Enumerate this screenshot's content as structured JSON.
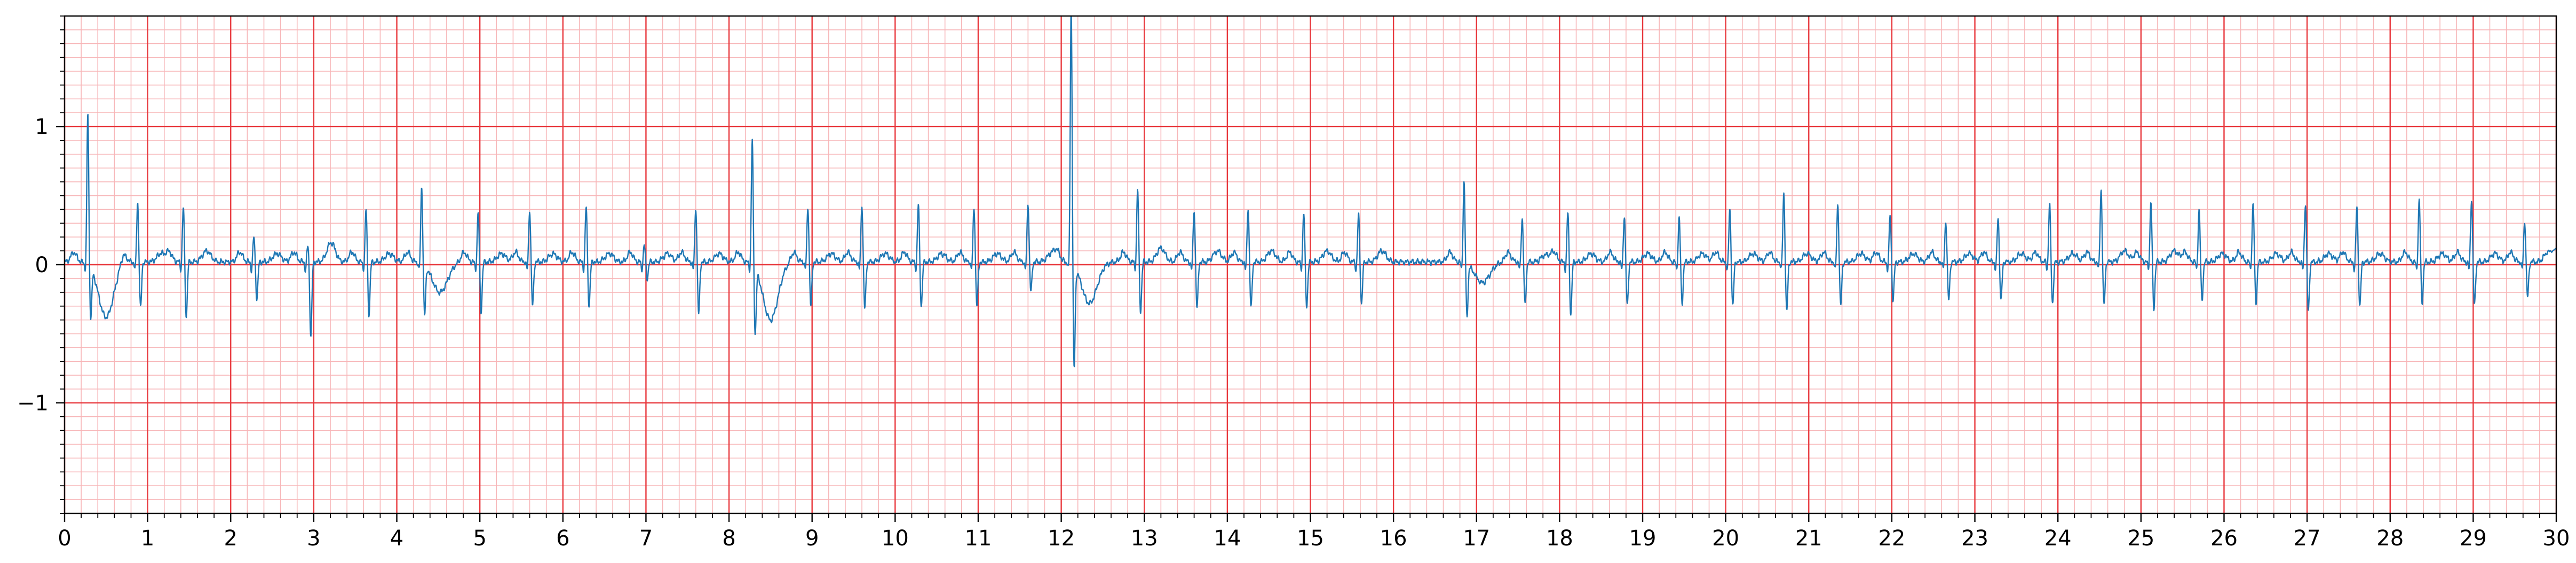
{
  "chart_data": {
    "type": "line",
    "title": "",
    "xlabel": "",
    "ylabel": "",
    "xlim": [
      0,
      30
    ],
    "ylim": [
      -1.8,
      1.8
    ],
    "x_ticks": [
      0,
      1,
      2,
      3,
      4,
      5,
      6,
      7,
      8,
      9,
      10,
      11,
      12,
      13,
      14,
      15,
      16,
      17,
      18,
      19,
      20,
      21,
      22,
      23,
      24,
      25,
      26,
      27,
      28,
      29,
      30
    ],
    "x_tick_labels": [
      "0",
      "1",
      "2",
      "3",
      "4",
      "5",
      "6",
      "7",
      "8",
      "9",
      "10",
      "11",
      "12",
      "13",
      "14",
      "15",
      "16",
      "17",
      "18",
      "19",
      "20",
      "21",
      "22",
      "23",
      "24",
      "25",
      "26",
      "27",
      "28",
      "29",
      "30"
    ],
    "y_ticks": [
      -1,
      0,
      1
    ],
    "y_tick_labels": [
      "−1",
      "0",
      "1"
    ],
    "x_minor_step": 0.2,
    "y_minor_step": 0.1,
    "grid": {
      "major": true,
      "minor": true
    },
    "colors": {
      "trace": "#1f77b4",
      "major_grid": "#e8383d",
      "minor_grid": "#f7b6b8",
      "axis": "#000000"
    },
    "series": [
      {
        "name": "",
        "beats": [
          {
            "t": 0.28,
            "r": 1.12,
            "s": -0.34,
            "t_wave": -0.4
          },
          {
            "t": 0.88,
            "r": 0.45,
            "s": -0.32,
            "t_wave": 0.06
          },
          {
            "t": 1.43,
            "r": 0.42,
            "s": -0.38,
            "t_wave": 0.08
          },
          {
            "t": 2.28,
            "r": 0.2,
            "s": -0.25,
            "t_wave": 0.06
          },
          {
            "t": 2.93,
            "r": 0.14,
            "s": -0.52,
            "t_wave": 0.14
          },
          {
            "t": 3.63,
            "r": 0.4,
            "s": -0.36,
            "t_wave": 0.06
          },
          {
            "t": 4.3,
            "r": 0.58,
            "s": -0.34,
            "t_wave": -0.22
          },
          {
            "t": 4.98,
            "r": 0.38,
            "s": -0.34,
            "t_wave": 0.06
          },
          {
            "t": 5.6,
            "r": 0.4,
            "s": -0.3,
            "t_wave": 0.06
          },
          {
            "t": 6.28,
            "r": 0.42,
            "s": -0.3,
            "t_wave": 0.06
          },
          {
            "t": 6.98,
            "r": 0.14,
            "s": -0.1,
            "t_wave": 0.06
          },
          {
            "t": 7.6,
            "r": 0.42,
            "s": -0.36,
            "t_wave": 0.06
          },
          {
            "t": 8.28,
            "r": 0.93,
            "s": -0.45,
            "t_wave": -0.42
          },
          {
            "t": 8.95,
            "r": 0.42,
            "s": -0.3,
            "t_wave": 0.06
          },
          {
            "t": 9.6,
            "r": 0.44,
            "s": -0.32,
            "t_wave": 0.06
          },
          {
            "t": 10.28,
            "r": 0.44,
            "s": -0.3,
            "t_wave": 0.06
          },
          {
            "t": 10.95,
            "r": 0.42,
            "s": -0.3,
            "t_wave": 0.06
          },
          {
            "t": 11.6,
            "r": 0.45,
            "s": -0.2,
            "t_wave": 0.06
          },
          {
            "t": 12.12,
            "r": 1.9,
            "s": -0.72,
            "t_wave": -0.3
          },
          {
            "t": 12.92,
            "r": 0.55,
            "s": -0.34,
            "t_wave": 0.1
          },
          {
            "t": 13.6,
            "r": 0.4,
            "s": -0.32,
            "t_wave": 0.08
          },
          {
            "t": 14.25,
            "r": 0.42,
            "s": -0.32,
            "t_wave": 0.08
          },
          {
            "t": 14.92,
            "r": 0.38,
            "s": -0.3,
            "t_wave": 0.08
          },
          {
            "t": 15.58,
            "r": 0.36,
            "s": -0.28,
            "t_wave": 0.08
          },
          {
            "t": 16.85,
            "r": 0.61,
            "s": -0.36,
            "t_wave": -0.15
          },
          {
            "t": 17.55,
            "r": 0.34,
            "s": -0.3,
            "t_wave": 0.05
          },
          {
            "t": 18.1,
            "r": 0.38,
            "s": -0.36,
            "t_wave": 0.06
          },
          {
            "t": 18.78,
            "r": 0.36,
            "s": -0.3,
            "t_wave": 0.06
          },
          {
            "t": 19.44,
            "r": 0.34,
            "s": -0.28,
            "t_wave": 0.06
          },
          {
            "t": 20.05,
            "r": 0.4,
            "s": -0.3,
            "t_wave": 0.06
          },
          {
            "t": 20.7,
            "r": 0.52,
            "s": -0.34,
            "t_wave": 0.06
          },
          {
            "t": 21.35,
            "r": 0.44,
            "s": -0.3,
            "t_wave": 0.06
          },
          {
            "t": 21.98,
            "r": 0.36,
            "s": -0.26,
            "t_wave": 0.06
          },
          {
            "t": 22.65,
            "r": 0.32,
            "s": -0.26,
            "t_wave": 0.06
          },
          {
            "t": 23.28,
            "r": 0.34,
            "s": -0.26,
            "t_wave": 0.06
          },
          {
            "t": 23.9,
            "r": 0.44,
            "s": -0.28,
            "t_wave": 0.06
          },
          {
            "t": 24.52,
            "r": 0.55,
            "s": -0.3,
            "t_wave": 0.08
          },
          {
            "t": 25.12,
            "r": 0.46,
            "s": -0.32,
            "t_wave": 0.08
          },
          {
            "t": 25.7,
            "r": 0.4,
            "s": -0.26,
            "t_wave": 0.06
          },
          {
            "t": 26.35,
            "r": 0.44,
            "s": -0.28,
            "t_wave": 0.06
          },
          {
            "t": 26.98,
            "r": 0.45,
            "s": -0.34,
            "t_wave": 0.06
          },
          {
            "t": 27.6,
            "r": 0.42,
            "s": -0.3,
            "t_wave": 0.06
          },
          {
            "t": 28.35,
            "r": 0.47,
            "s": -0.28,
            "t_wave": 0.06
          },
          {
            "t": 28.98,
            "r": 0.48,
            "s": -0.3,
            "t_wave": 0.06
          },
          {
            "t": 29.62,
            "r": 0.32,
            "s": -0.24,
            "t_wave": 0.06
          }
        ],
        "end_value": 0.12
      }
    ]
  }
}
